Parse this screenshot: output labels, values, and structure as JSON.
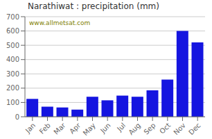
{
  "chart_data": {
    "type": "bar",
    "title": "Narathiwat : precipitation (mm)",
    "categories": [
      "Jan",
      "Feb",
      "Mar",
      "Apr",
      "May",
      "Jun",
      "Jul",
      "Aug",
      "Sep",
      "Oct",
      "Nov",
      "Dec"
    ],
    "values": [
      125,
      70,
      65,
      50,
      140,
      115,
      148,
      140,
      185,
      260,
      600,
      520
    ],
    "color": "#1515e0",
    "ylim": [
      0,
      700
    ],
    "yticks": [
      0,
      100,
      200,
      300,
      400,
      500,
      600,
      700
    ],
    "grid": true,
    "annotations": [
      {
        "text": "www.allmetsat.com",
        "color": "#808000"
      }
    ]
  }
}
